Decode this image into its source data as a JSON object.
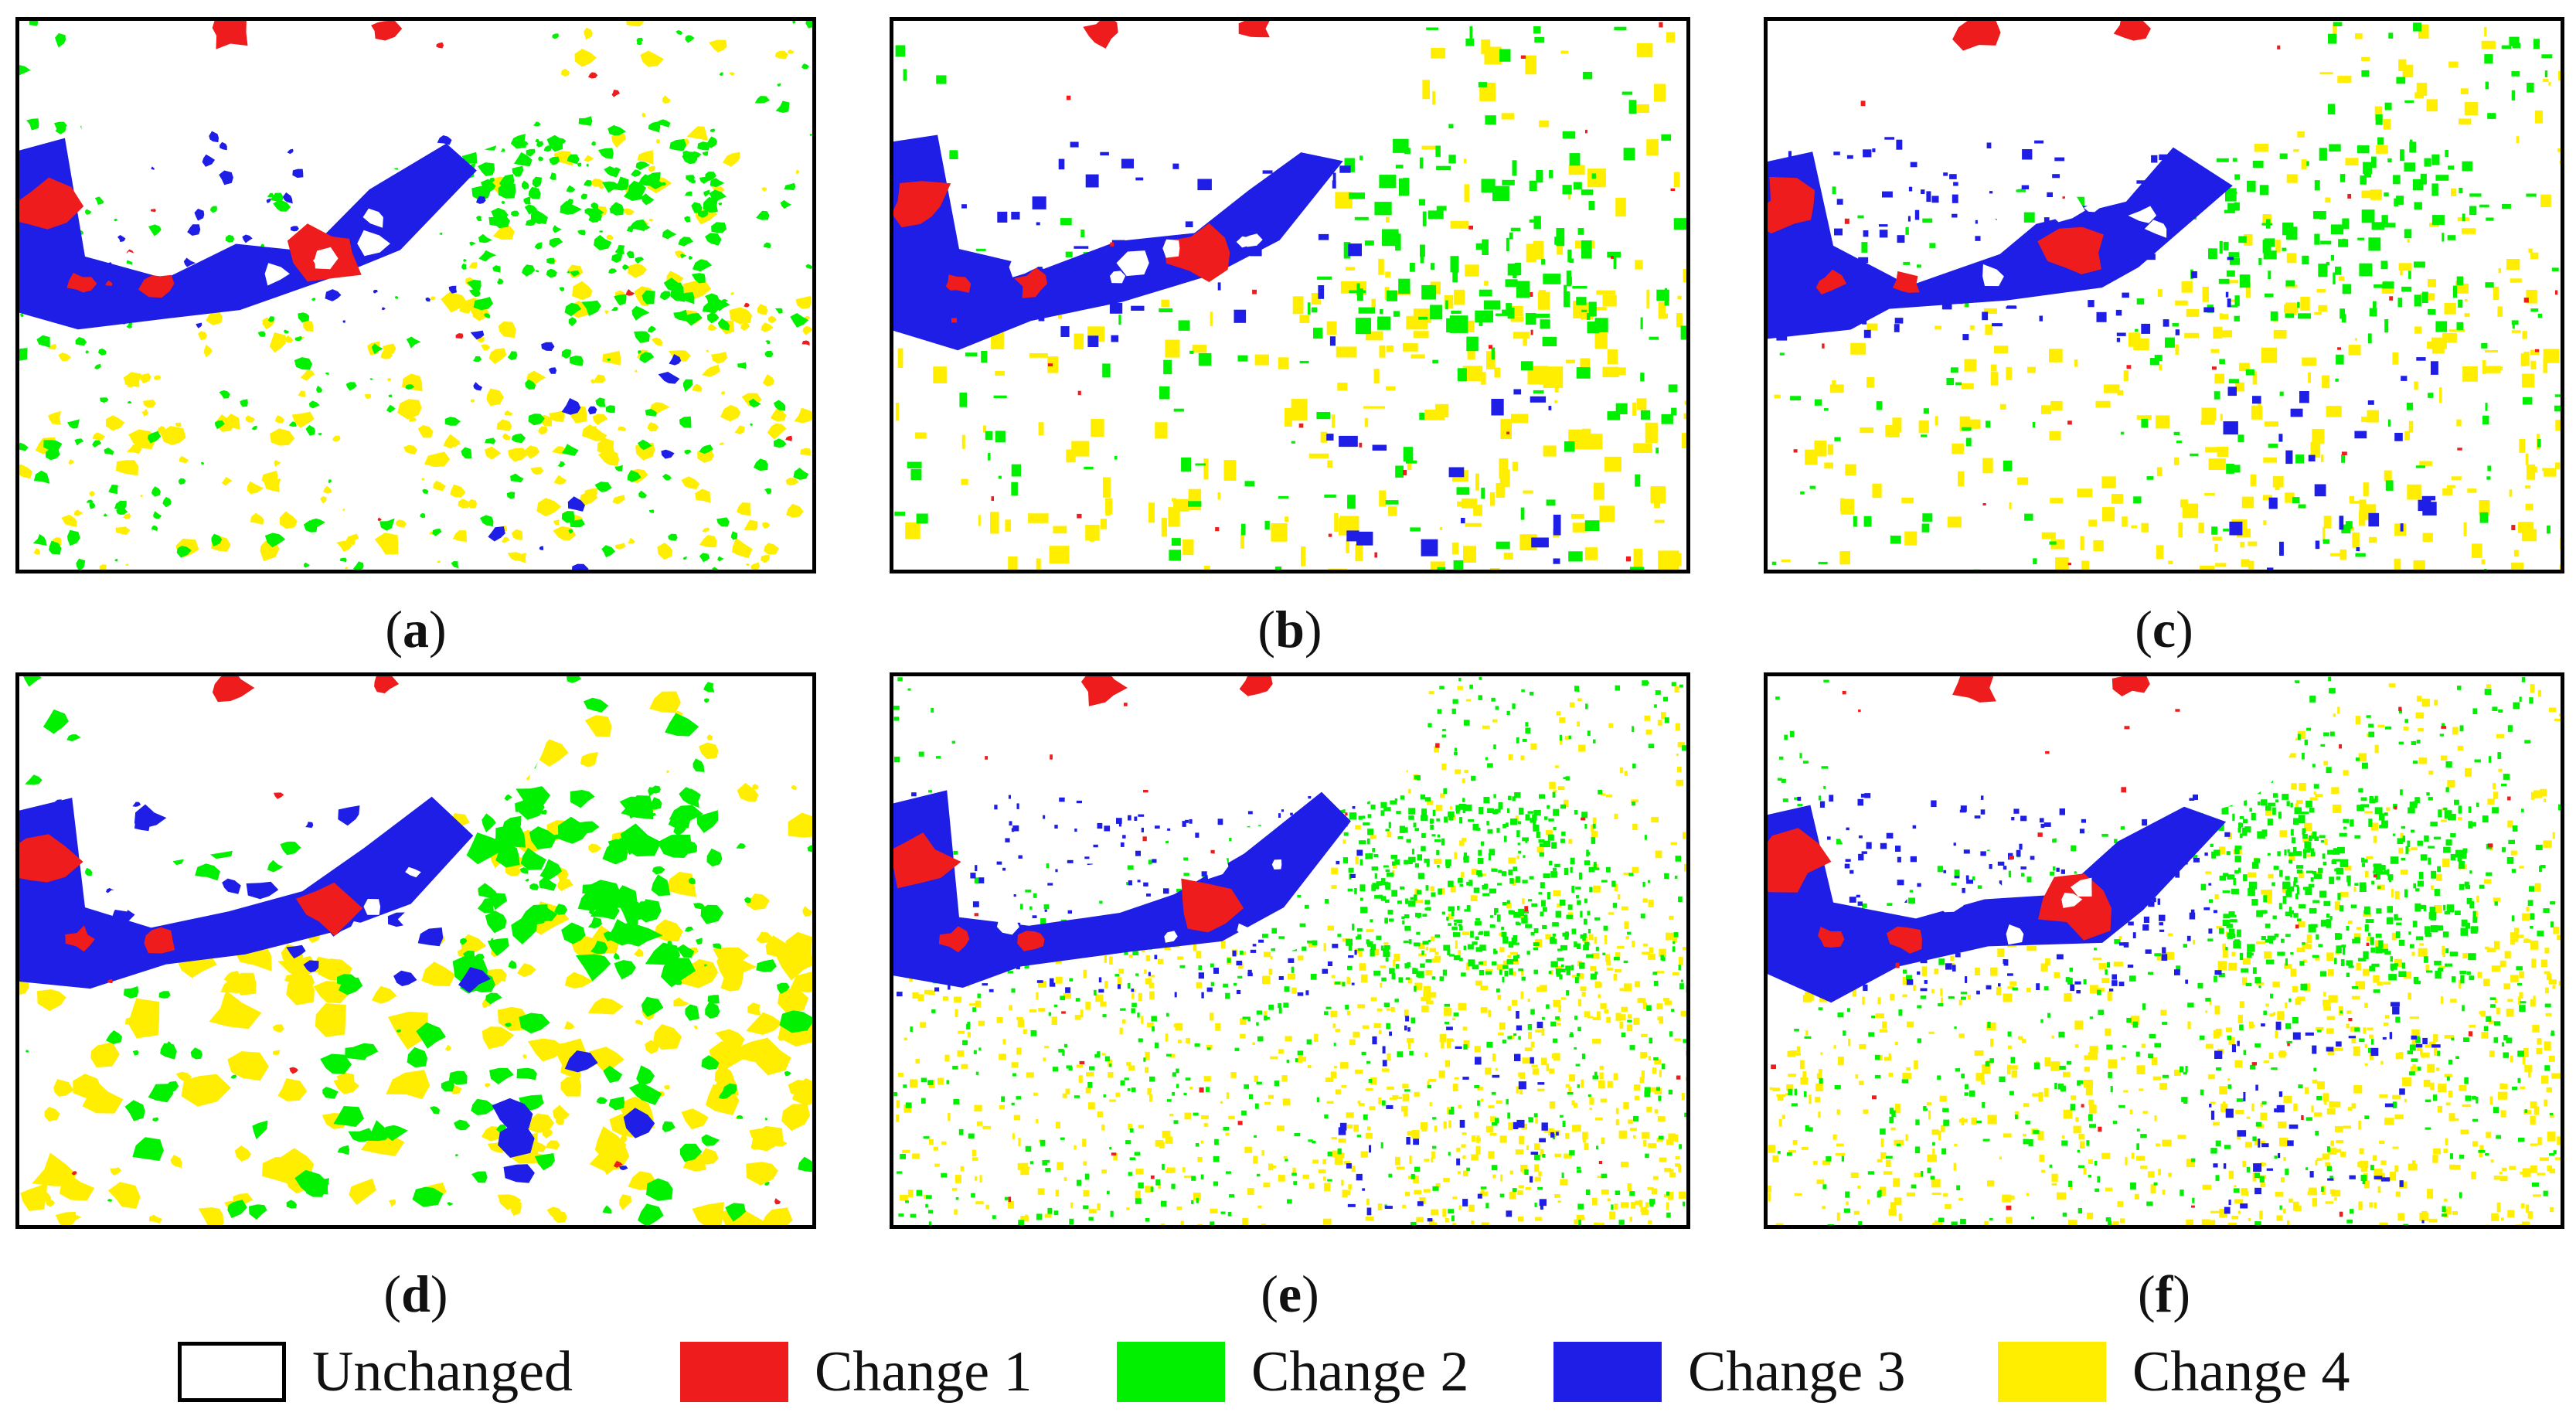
{
  "colors": {
    "unchanged": "#ffffff",
    "change1": "#ee1c1c",
    "change2": "#00f000",
    "change3": "#1e1ee6",
    "change4": "#ffee00"
  },
  "panels": [
    {
      "id": "a",
      "letter": "a"
    },
    {
      "id": "b",
      "letter": "b"
    },
    {
      "id": "c",
      "letter": "c"
    },
    {
      "id": "d",
      "letter": "d"
    },
    {
      "id": "e",
      "letter": "e"
    },
    {
      "id": "f",
      "letter": "f"
    }
  ],
  "legend": [
    {
      "label": "Unchanged",
      "color": "#ffffff"
    },
    {
      "label": "Change 1",
      "color": "#ee1c1c"
    },
    {
      "label": "Change 2",
      "color": "#00f000"
    },
    {
      "label": "Change 3",
      "color": "#1e1ee6"
    },
    {
      "label": "Change 4",
      "color": "#ffee00"
    }
  ]
}
